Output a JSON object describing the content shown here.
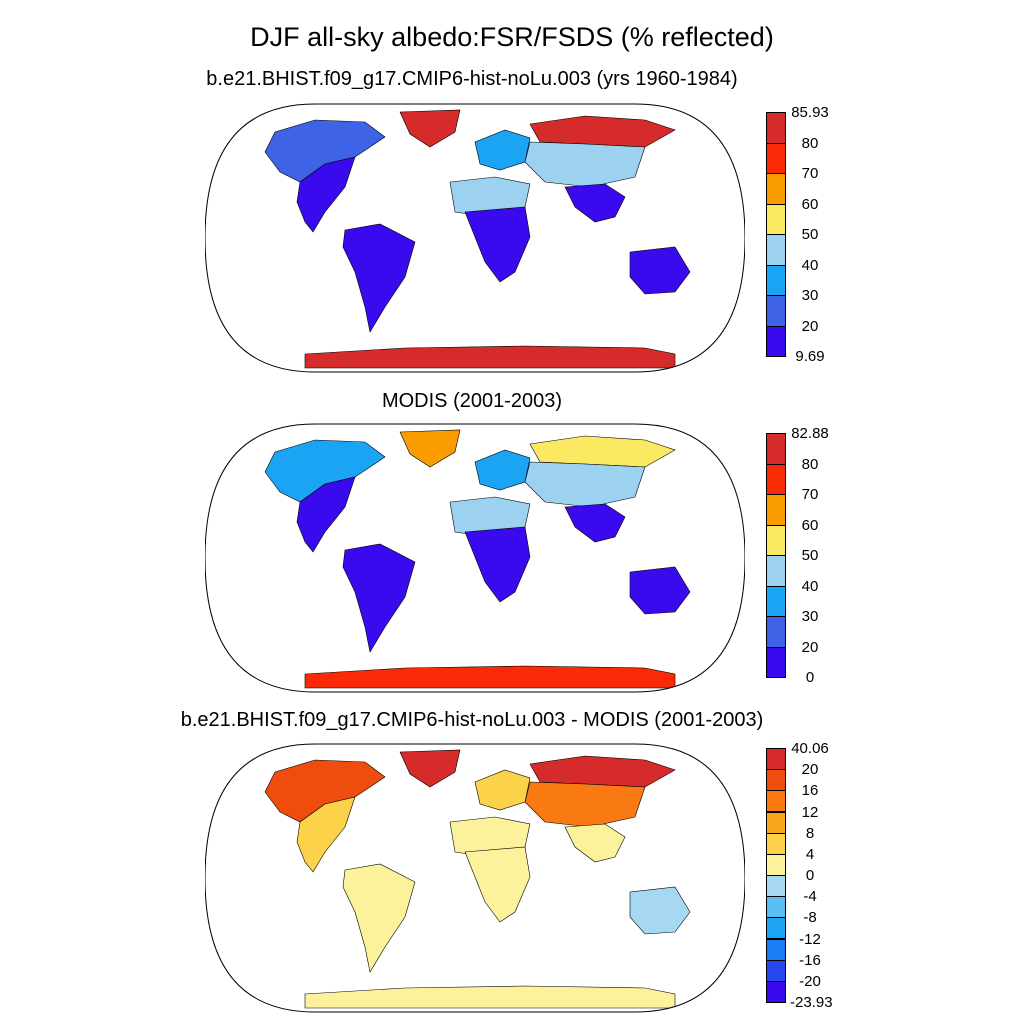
{
  "figure": {
    "title": "DJF all-sky albedo:FSR/FSDS (% reflected)"
  },
  "panels": [
    {
      "title": "b.e21.BHIST.f09_g17.CMIP6-hist-noLu.003 (yrs 1960-1984)",
      "colorbar": {
        "colors": [
          "#3a0aef",
          "#3f63e6",
          "#1ba3f4",
          "#9cd2ef",
          "#fbe964",
          "#fb9c00",
          "#f92a05",
          "#d62b2b"
        ],
        "labels": [
          "9.69",
          "20",
          "30",
          "40",
          "50",
          "60",
          "70",
          "80",
          "85.93"
        ]
      },
      "regions": {
        "greenland": "#d62b2b",
        "north_america_north": "#3f63e6",
        "north_america_south": "#3a0aef",
        "south_america": "#3a0aef",
        "europe_north": "#1ba3f4",
        "siberia": "#d62b2b",
        "central_asia": "#9cd2ef",
        "africa_north": "#9cd2ef",
        "africa_south": "#3a0aef",
        "south_asia": "#3a0aef",
        "australia": "#3a0aef",
        "antarctica": "#d62b2b"
      }
    },
    {
      "title": "MODIS (2001-2003)",
      "colorbar": {
        "colors": [
          "#3a0aef",
          "#3f63e6",
          "#1ba3f4",
          "#9cd2ef",
          "#fbe964",
          "#fb9c00",
          "#f92a05",
          "#d62b2b"
        ],
        "labels": [
          "0",
          "20",
          "30",
          "40",
          "50",
          "60",
          "70",
          "80",
          "82.88"
        ]
      },
      "regions": {
        "greenland": "#fb9c00",
        "north_america_north": "#1ba3f4",
        "north_america_south": "#3a0aef",
        "south_america": "#3a0aef",
        "europe_north": "#1ba3f4",
        "siberia": "#fbe964",
        "central_asia": "#9cd2ef",
        "africa_north": "#9cd2ef",
        "africa_south": "#3a0aef",
        "south_asia": "#3a0aef",
        "australia": "#3a0aef",
        "antarctica": "#f92a05"
      }
    },
    {
      "title": "b.e21.BHIST.f09_g17.CMIP6-hist-noLu.003 - MODIS (2001-2003)",
      "colorbar": {
        "colors": [
          "#3a0aef",
          "#2846ee",
          "#1a7ff5",
          "#1ba3f4",
          "#5ac0f4",
          "#a6d8f2",
          "#fdf29c",
          "#fbd24a",
          "#fba71c",
          "#f97a12",
          "#ee4d0e",
          "#d62b2b"
        ],
        "labels": [
          "-23.93",
          "-20",
          "-16",
          "-12",
          "-8",
          "-4",
          "0",
          "4",
          "8",
          "12",
          "16",
          "20",
          "40.06"
        ]
      },
      "regions": {
        "greenland": "#d62b2b",
        "north_america_north": "#ee4d0e",
        "north_america_south": "#fbd24a",
        "south_america": "#fdf29c",
        "europe_north": "#fbd24a",
        "siberia": "#d62b2b",
        "central_asia": "#f97a12",
        "africa_north": "#fdf29c",
        "africa_south": "#fdf29c",
        "south_asia": "#fdf29c",
        "australia": "#a6d8f2",
        "antarctica": "#fdf29c"
      }
    }
  ]
}
